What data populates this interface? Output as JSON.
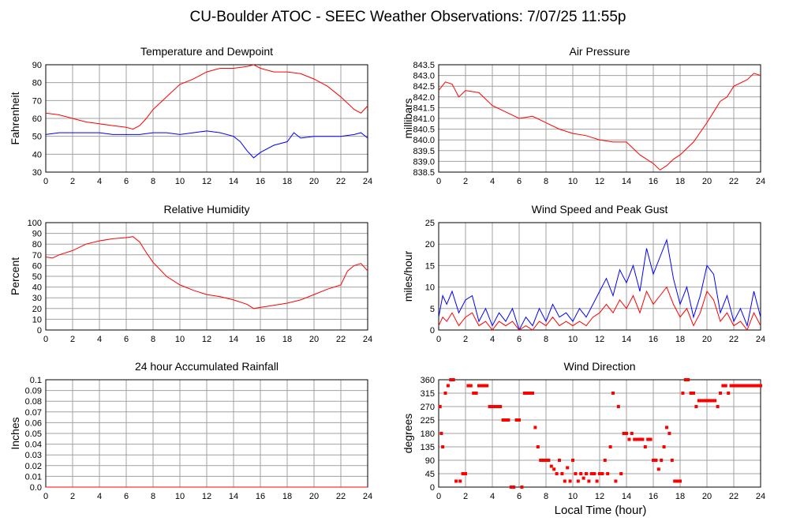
{
  "title": "CU-Boulder ATOC - SEEC Weather Observations: 7/07/25 11:55p",
  "xlabel": "Local Time (hour)",
  "colors": {
    "red": "#ff0000",
    "blue": "#0000ff",
    "grid": "#a0a0a0"
  },
  "chart_data": [
    {
      "type": "line",
      "title": "Temperature and Dewpoint",
      "ylabel": "Fahrenheit",
      "xlim": [
        0,
        24
      ],
      "ylim": [
        30,
        90
      ],
      "xticks": [
        0,
        2,
        4,
        6,
        8,
        10,
        12,
        14,
        16,
        18,
        20,
        22,
        24
      ],
      "yticks": [
        30,
        40,
        50,
        60,
        70,
        80,
        90
      ],
      "grid": true,
      "series": [
        {
          "color": "red",
          "x": [
            0,
            1,
            2,
            3,
            4,
            5,
            6,
            6.5,
            7,
            7.5,
            8,
            9,
            10,
            11,
            12,
            13,
            14,
            15,
            15.5,
            16,
            17,
            18,
            19,
            20,
            21,
            22,
            23,
            23.5,
            24
          ],
          "y": [
            63,
            62,
            60,
            58,
            57,
            56,
            55,
            54,
            56,
            60,
            65,
            72,
            79,
            82,
            86,
            88,
            88,
            89,
            90,
            88,
            86,
            86,
            85,
            82,
            78,
            72,
            65,
            63,
            67
          ]
        },
        {
          "color": "blue",
          "x": [
            0,
            1,
            2,
            3,
            4,
            5,
            6,
            7,
            8,
            9,
            10,
            11,
            12,
            13,
            14,
            14.5,
            15,
            15.5,
            16,
            17,
            18,
            18.5,
            19,
            20,
            21,
            22,
            23,
            23.5,
            24
          ],
          "y": [
            51,
            52,
            52,
            52,
            52,
            51,
            51,
            51,
            52,
            52,
            51,
            52,
            53,
            52,
            50,
            47,
            42,
            38,
            41,
            45,
            47,
            52,
            49,
            50,
            50,
            50,
            51,
            52,
            49
          ]
        }
      ]
    },
    {
      "type": "line",
      "title": "Air Pressure",
      "ylabel": "millibars",
      "xlim": [
        0,
        24
      ],
      "ylim": [
        838.5,
        843.5
      ],
      "xticks": [
        0,
        2,
        4,
        6,
        8,
        10,
        12,
        14,
        16,
        18,
        20,
        22,
        24
      ],
      "yticks": [
        838.5,
        839.0,
        839.5,
        840.0,
        840.5,
        841.0,
        841.5,
        842.0,
        842.5,
        843.0,
        843.5
      ],
      "grid": true,
      "series": [
        {
          "color": "red",
          "x": [
            0,
            0.5,
            1,
            1.5,
            2,
            3,
            4,
            5,
            6,
            7,
            8,
            9,
            10,
            11,
            12,
            13,
            14,
            15,
            16,
            16.5,
            17,
            17.5,
            18,
            19,
            20,
            20.5,
            21,
            21.5,
            22,
            23,
            23.5,
            24
          ],
          "y": [
            842.3,
            842.7,
            842.6,
            842.0,
            842.3,
            842.2,
            841.6,
            841.3,
            841.0,
            841.1,
            840.8,
            840.5,
            840.3,
            840.2,
            840.0,
            839.9,
            839.9,
            839.3,
            838.9,
            838.6,
            838.8,
            839.1,
            839.3,
            839.9,
            840.8,
            841.3,
            841.8,
            842.0,
            842.5,
            842.8,
            843.1,
            843.0
          ]
        }
      ]
    },
    {
      "type": "line",
      "title": "Relative Humidity",
      "ylabel": "Percent",
      "xlim": [
        0,
        24
      ],
      "ylim": [
        0,
        100
      ],
      "xticks": [
        0,
        2,
        4,
        6,
        8,
        10,
        12,
        14,
        16,
        18,
        20,
        22,
        24
      ],
      "yticks": [
        0,
        10,
        20,
        30,
        40,
        50,
        60,
        70,
        80,
        90,
        100
      ],
      "grid": true,
      "series": [
        {
          "color": "red",
          "x": [
            0,
            0.5,
            1,
            2,
            3,
            4,
            5,
            6,
            6.5,
            7,
            7.5,
            8,
            9,
            10,
            11,
            12,
            13,
            14,
            15,
            15.5,
            16,
            17,
            18,
            19,
            20,
            21,
            22,
            22.5,
            23,
            23.5,
            24
          ],
          "y": [
            68,
            67,
            70,
            74,
            80,
            83,
            85,
            86,
            87,
            82,
            72,
            63,
            50,
            42,
            37,
            33,
            31,
            28,
            24,
            20,
            21,
            23,
            25,
            28,
            33,
            38,
            42,
            55,
            60,
            62,
            55
          ]
        }
      ]
    },
    {
      "type": "line",
      "title": "Wind Speed and Peak Gust",
      "ylabel": "miles/hour",
      "xlim": [
        0,
        24
      ],
      "ylim": [
        0,
        25
      ],
      "xticks": [
        0,
        2,
        4,
        6,
        8,
        10,
        12,
        14,
        16,
        18,
        20,
        22,
        24
      ],
      "yticks": [
        0,
        5,
        10,
        15,
        20,
        25
      ],
      "grid": true,
      "series": [
        {
          "color": "blue",
          "x": [
            0,
            0.3,
            0.6,
            1,
            1.5,
            2,
            2.5,
            3,
            3.5,
            4,
            4.5,
            5,
            5.5,
            6,
            6.5,
            7,
            7.5,
            8,
            8.5,
            9,
            9.5,
            10,
            10.5,
            11,
            11.5,
            12,
            12.5,
            13,
            13.5,
            14,
            14.5,
            15,
            15.5,
            16,
            16.5,
            17,
            17.5,
            18,
            18.5,
            19,
            19.5,
            20,
            20.5,
            21,
            21.5,
            22,
            22.5,
            23,
            23.5,
            24
          ],
          "y": [
            3,
            8,
            6,
            9,
            4,
            7,
            8,
            2,
            5,
            1,
            4,
            2,
            5,
            0,
            3,
            1,
            5,
            2,
            6,
            3,
            4,
            2,
            5,
            3,
            6,
            9,
            12,
            8,
            14,
            11,
            15,
            9,
            19,
            13,
            17,
            21,
            12,
            6,
            10,
            3,
            8,
            15,
            13,
            4,
            8,
            2,
            5,
            1,
            9,
            3
          ]
        },
        {
          "color": "red",
          "x": [
            0,
            0.3,
            0.6,
            1,
            1.5,
            2,
            2.5,
            3,
            3.5,
            4,
            4.5,
            5,
            5.5,
            6,
            6.5,
            7,
            7.5,
            8,
            8.5,
            9,
            9.5,
            10,
            10.5,
            11,
            11.5,
            12,
            12.5,
            13,
            13.5,
            14,
            14.5,
            15,
            15.5,
            16,
            16.5,
            17,
            17.5,
            18,
            18.5,
            19,
            19.5,
            20,
            20.5,
            21,
            21.5,
            22,
            22.5,
            23,
            23.5,
            24
          ],
          "y": [
            1,
            3,
            2,
            4,
            1,
            3,
            4,
            1,
            2,
            0,
            2,
            1,
            2,
            0,
            1,
            0,
            2,
            1,
            3,
            1,
            2,
            1,
            2,
            1,
            3,
            4,
            6,
            4,
            7,
            5,
            8,
            4,
            9,
            6,
            8,
            10,
            6,
            3,
            5,
            1,
            4,
            9,
            7,
            2,
            4,
            1,
            2,
            0,
            4,
            1
          ]
        }
      ]
    },
    {
      "type": "line",
      "title": "24 hour Accumulated Rainfall",
      "ylabel": "Inches",
      "xlim": [
        0,
        24
      ],
      "ylim": [
        0,
        0.1
      ],
      "xticks": [
        0,
        2,
        4,
        6,
        8,
        10,
        12,
        14,
        16,
        18,
        20,
        22,
        24
      ],
      "yticks": [
        0.0,
        0.01,
        0.02,
        0.03,
        0.04,
        0.05,
        0.06,
        0.07,
        0.08,
        0.09,
        0.1
      ],
      "ytick_labels": [
        "0.0",
        "0.01",
        "0.02",
        "0.03",
        "0.04",
        "0.05",
        "0.06",
        "0.07",
        "0.08",
        "0.09",
        "0.1"
      ],
      "grid": true,
      "series": [
        {
          "color": "red",
          "x": [
            0,
            24
          ],
          "y": [
            0,
            0
          ]
        }
      ]
    },
    {
      "type": "scatter",
      "title": "Wind Direction",
      "ylabel": "degrees",
      "xlim": [
        0,
        24
      ],
      "ylim": [
        0,
        360
      ],
      "xticks": [
        0,
        2,
        4,
        6,
        8,
        10,
        12,
        14,
        16,
        18,
        20,
        22,
        24
      ],
      "yticks": [
        0,
        45,
        90,
        135,
        180,
        225,
        270,
        315,
        360
      ],
      "grid": true,
      "series": [
        {
          "color": "red",
          "x": [
            0.1,
            0.2,
            0.3,
            0.5,
            0.7,
            0.9,
            1.1,
            1.3,
            1.6,
            1.8,
            2.0,
            2.2,
            2.4,
            2.6,
            2.8,
            3.0,
            3.2,
            3.4,
            3.6,
            3.8,
            4.0,
            4.2,
            4.4,
            4.6,
            4.8,
            5.0,
            5.2,
            5.4,
            5.6,
            5.8,
            6.0,
            6.2,
            6.4,
            6.6,
            6.8,
            7.0,
            7.2,
            7.4,
            7.6,
            7.8,
            8.0,
            8.2,
            8.4,
            8.6,
            8.8,
            9.0,
            9.2,
            9.4,
            9.6,
            9.8,
            10.0,
            10.2,
            10.4,
            10.6,
            10.8,
            11.0,
            11.2,
            11.4,
            11.6,
            11.8,
            12.0,
            12.2,
            12.4,
            12.6,
            12.8,
            13.0,
            13.2,
            13.4,
            13.6,
            13.8,
            14.0,
            14.2,
            14.4,
            14.6,
            14.8,
            15.0,
            15.2,
            15.4,
            15.6,
            15.8,
            16.0,
            16.2,
            16.4,
            16.6,
            16.8,
            17.0,
            17.2,
            17.4,
            17.6,
            17.8,
            18.0,
            18.2,
            18.4,
            18.6,
            18.8,
            19.0,
            19.2,
            19.4,
            19.6,
            19.8,
            20.0,
            20.2,
            20.4,
            20.6,
            20.8,
            21.0,
            21.2,
            21.4,
            21.6,
            21.8,
            22.0,
            22.2,
            22.4,
            22.6,
            22.8,
            23.0,
            23.2,
            23.4,
            23.6,
            23.8,
            24.0
          ],
          "y": [
            270,
            180,
            135,
            315,
            340,
            360,
            360,
            20,
            20,
            45,
            45,
            340,
            340,
            315,
            315,
            340,
            340,
            340,
            340,
            270,
            270,
            270,
            270,
            270,
            225,
            225,
            225,
            0,
            0,
            225,
            225,
            0,
            315,
            315,
            315,
            315,
            200,
            135,
            90,
            90,
            90,
            90,
            70,
            60,
            45,
            90,
            45,
            20,
            65,
            20,
            90,
            45,
            20,
            45,
            30,
            45,
            20,
            45,
            45,
            20,
            45,
            45,
            90,
            45,
            135,
            315,
            20,
            270,
            45,
            180,
            180,
            160,
            180,
            160,
            160,
            160,
            160,
            135,
            160,
            160,
            90,
            90,
            60,
            90,
            135,
            200,
            180,
            90,
            20,
            20,
            20,
            315,
            360,
            360,
            315,
            315,
            270,
            290,
            290,
            290,
            290,
            290,
            290,
            290,
            270,
            315,
            340,
            340,
            315,
            340,
            340,
            340,
            340,
            340,
            340,
            340,
            340,
            340,
            340,
            340,
            340
          ],
          "dots": true
        }
      ]
    }
  ]
}
